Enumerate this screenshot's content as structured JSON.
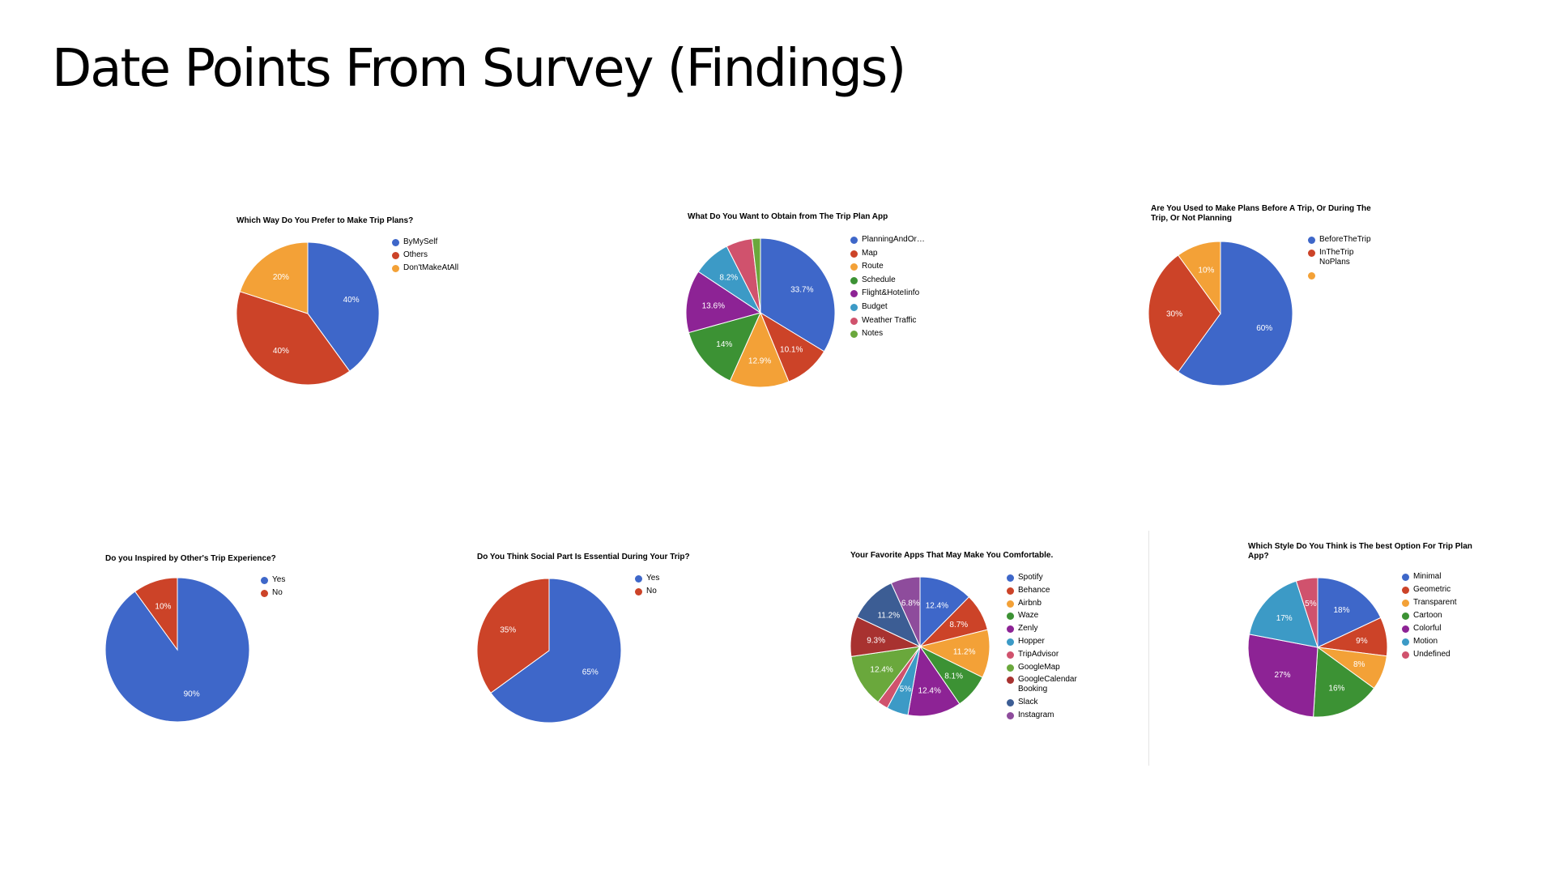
{
  "page": {
    "title": "Date Points From Survey (Findings)"
  },
  "colors": {
    "blue": "#3e67c9",
    "red": "#cc4328",
    "orange": "#f3a137",
    "green": "#3c9234",
    "purple": "#8d2395",
    "teal": "#3c9ac6",
    "pink": "#d0526d",
    "lime": "#6aa83c",
    "darkred": "#a83230",
    "navy": "#3c5d94",
    "violet": "#8e4c9c"
  },
  "chart_data": [
    {
      "id": "trip-plan-preference",
      "type": "pie",
      "title": "Which Way Do You Prefer to Make Trip Plans?",
      "legend_position": "right",
      "slices": [
        {
          "name": "ByMySelf",
          "value": 40,
          "label": "40%",
          "color": "#3e67c9"
        },
        {
          "name": "Others",
          "value": 40,
          "label": "40%",
          "color": "#cc4328"
        },
        {
          "name": "Don'tMakeAtAll",
          "value": 20,
          "label": "20%",
          "color": "#f3a137"
        }
      ],
      "legend": [
        "ByMySelf",
        "Others",
        "Don'tMakeAtAll"
      ]
    },
    {
      "id": "trip-app-goals",
      "type": "pie",
      "title": "What Do You Want to Obtain from The Trip Plan App",
      "legend_position": "right",
      "slices": [
        {
          "name": "PlanningAndOr…",
          "value": 33.7,
          "label": "33.7%",
          "color": "#3e67c9"
        },
        {
          "name": "Map",
          "value": 10.1,
          "label": "10.1%",
          "color": "#cc4328"
        },
        {
          "name": "Route",
          "value": 12.9,
          "label": "12.9%",
          "color": "#f3a137"
        },
        {
          "name": "Schedule",
          "value": 14,
          "label": "14%",
          "color": "#3c9234"
        },
        {
          "name": "Flight&HoteIinfo",
          "value": 13.6,
          "label": "13.6%",
          "color": "#8d2395"
        },
        {
          "name": "Budget",
          "value": 8.2,
          "label": "8.2%",
          "color": "#3c9ac6"
        },
        {
          "name": "Weather Traffic",
          "value": 5.7,
          "label": "",
          "color": "#d0526d"
        },
        {
          "name": "Notes",
          "value": 1.8,
          "label": "",
          "color": "#6aa83c"
        }
      ],
      "legend": [
        "PlanningAndOr…",
        "Map",
        "Route",
        "Schedule",
        "Flight&HoteIinfo",
        "Budget",
        "Weather Traffic",
        "Notes"
      ]
    },
    {
      "id": "plan-timing",
      "type": "pie",
      "title": "Are You Used to Make Plans Before A Trip, Or During The Trip, Or Not Planning",
      "legend_position": "right",
      "slices": [
        {
          "name": "BeforeTheTrip",
          "value": 60,
          "label": "60%",
          "color": "#3e67c9"
        },
        {
          "name": "InTheTrip\nNoPlans",
          "value": 30,
          "label": "30%",
          "color": "#cc4328"
        },
        {
          "name": "",
          "value": 10,
          "label": "10%",
          "color": "#f3a137"
        }
      ],
      "legend": [
        "BeforeTheTrip",
        "InTheTrip\nNoPlans",
        ""
      ]
    },
    {
      "id": "inspired-by-others",
      "type": "pie",
      "title": "Do you Inspired by Other's Trip Experience?",
      "legend_position": "right",
      "slices": [
        {
          "name": "Yes",
          "value": 90,
          "label": "90%",
          "color": "#3e67c9"
        },
        {
          "name": "No",
          "value": 10,
          "label": "10%",
          "color": "#cc4328"
        }
      ],
      "legend": [
        "Yes",
        "No"
      ]
    },
    {
      "id": "social-essential",
      "type": "pie",
      "title": "Do You Think Social Part Is Essential During Your Trip?",
      "legend_position": "right",
      "slices": [
        {
          "name": "Yes",
          "value": 65,
          "label": "65%",
          "color": "#3e67c9"
        },
        {
          "name": "No",
          "value": 35,
          "label": "35%",
          "color": "#cc4328"
        }
      ],
      "legend": [
        "Yes",
        "No"
      ]
    },
    {
      "id": "favorite-apps",
      "type": "pie",
      "title": "Your Favorite Apps That May Make You Comfortable.",
      "legend_position": "right",
      "slices": [
        {
          "name": "Spotify",
          "value": 12.4,
          "label": "12.4%",
          "color": "#3e67c9"
        },
        {
          "name": "Behance",
          "value": 8.7,
          "label": "8.7%",
          "color": "#cc4328"
        },
        {
          "name": "Airbnb",
          "value": 11.2,
          "label": "11.2%",
          "color": "#f3a137"
        },
        {
          "name": "Waze",
          "value": 8.1,
          "label": "8.1%",
          "color": "#3c9234"
        },
        {
          "name": "Zenly",
          "value": 12.4,
          "label": "12.4%",
          "color": "#8d2395"
        },
        {
          "name": "Hopper",
          "value": 5,
          "label": "5%",
          "color": "#3c9ac6"
        },
        {
          "name": "TripAdvisor",
          "value": 2.5,
          "label": "",
          "color": "#d0526d"
        },
        {
          "name": "GoogleMap",
          "value": 12.4,
          "label": "12.4%",
          "color": "#6aa83c"
        },
        {
          "name": "GoogleCalendar\nBooking",
          "value": 9.3,
          "label": "9.3%",
          "color": "#a83230"
        },
        {
          "name": "Slack",
          "value": 11.2,
          "label": "11.2%",
          "color": "#3c5d94"
        },
        {
          "name": "Instagram",
          "value": 6.8,
          "label": "6.8%",
          "color": "#8e4c9c"
        }
      ],
      "legend": [
        "Spotify",
        "Behance",
        "Airbnb",
        "Waze",
        "Zenly",
        "Hopper",
        "TripAdvisor",
        "GoogleMap",
        "GoogleCalendar\nBooking",
        "Slack",
        "Instagram"
      ]
    },
    {
      "id": "preferred-style",
      "type": "pie",
      "title": "Which Style Do You Think is The best Option For Trip Plan App?",
      "legend_position": "right",
      "slices": [
        {
          "name": "Minimal",
          "value": 18,
          "label": "18%",
          "color": "#3e67c9"
        },
        {
          "name": "Geometric",
          "value": 9,
          "label": "9%",
          "color": "#cc4328"
        },
        {
          "name": "Transparent",
          "value": 8,
          "label": "8%",
          "color": "#f3a137"
        },
        {
          "name": "Cartoon",
          "value": 16,
          "label": "16%",
          "color": "#3c9234"
        },
        {
          "name": "Colorful",
          "value": 27,
          "label": "27%",
          "color": "#8d2395"
        },
        {
          "name": "Motion",
          "value": 17,
          "label": "17%",
          "color": "#3c9ac6"
        },
        {
          "name": "Undefined",
          "value": 5,
          "label": "5%",
          "color": "#d0526d"
        }
      ],
      "legend": [
        "Minimal",
        "Geometric",
        "Transparent",
        "Cartoon",
        "Colorful",
        "Motion",
        "Undefined"
      ]
    }
  ]
}
